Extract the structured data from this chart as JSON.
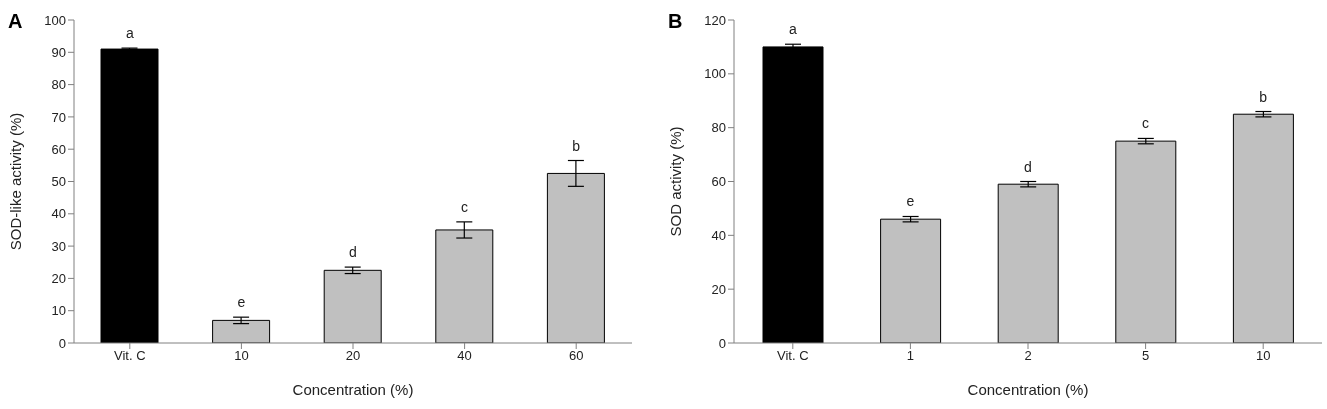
{
  "chart_data": [
    {
      "type": "bar",
      "title": "A",
      "xlabel": "Concentration (%)",
      "ylabel": "SOD-like activity (%)",
      "categories": [
        "Vit. C",
        "10",
        "20",
        "40",
        "60"
      ],
      "values": [
        91,
        7,
        22.5,
        35,
        52.5
      ],
      "errors": [
        0.3,
        1,
        1,
        2.5,
        4
      ],
      "colors": [
        "#000000",
        "#c0c0c0",
        "#c0c0c0",
        "#c0c0c0",
        "#c0c0c0"
      ],
      "ylim": [
        0,
        100
      ],
      "yticks": [
        0,
        10,
        20,
        30,
        40,
        50,
        60,
        70,
        80,
        90,
        100
      ],
      "grid": false,
      "legend": false,
      "annotations": [
        "a",
        "e",
        "d",
        "c",
        "b"
      ]
    },
    {
      "type": "bar",
      "title": "B",
      "xlabel": "Concentration (%)",
      "ylabel": "SOD activity (%)",
      "categories": [
        "Vit. C",
        "1",
        "2",
        "5",
        "10"
      ],
      "values": [
        110,
        46,
        59,
        75,
        85
      ],
      "errors": [
        1,
        1,
        1,
        1,
        1
      ],
      "colors": [
        "#000000",
        "#c0c0c0",
        "#c0c0c0",
        "#c0c0c0",
        "#c0c0c0"
      ],
      "ylim": [
        0,
        120
      ],
      "yticks": [
        0,
        20,
        40,
        60,
        80,
        100,
        120
      ],
      "grid": false,
      "legend": false,
      "annotations": [
        "a",
        "e",
        "d",
        "c",
        "b"
      ]
    }
  ]
}
